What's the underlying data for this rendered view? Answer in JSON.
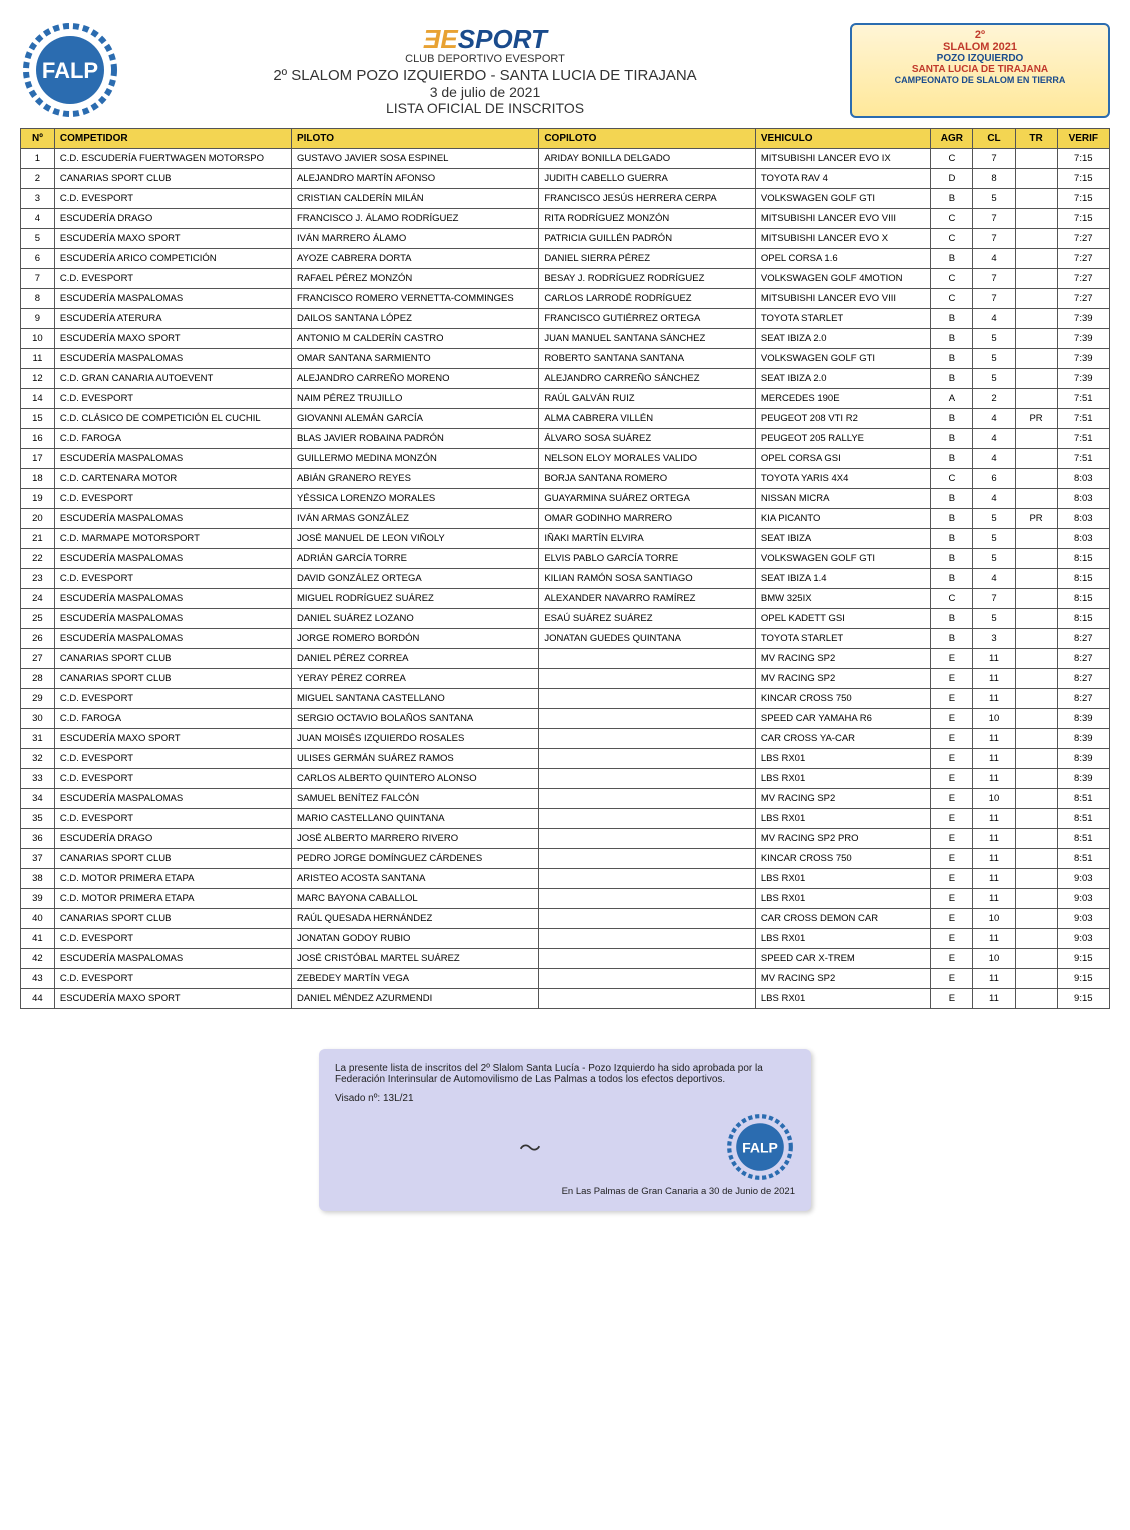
{
  "header": {
    "club_name": "CLUB DEPORTIVO EVESPORT",
    "event_title": "2º SLALOM POZO IZQUIERDO - SANTA LUCIA DE TIRAJANA",
    "event_date": "3 de julio de 2021",
    "list_title": "LISTA OFICIAL DE INSCRITOS",
    "badge": {
      "l1": "2º",
      "l2": "SLALOM 2021",
      "l3": "POZO IZQUIERDO",
      "l4": "SANTA LUCIA DE TIRAJANA",
      "l5": "CAMPEONATO DE SLALOM EN TIERRA"
    }
  },
  "columns": {
    "num": "Nº",
    "competidor": "COMPETIDOR",
    "piloto": "PILOTO",
    "copiloto": "COPILOTO",
    "vehiculo": "VEHICULO",
    "agr": "AGR",
    "cl": "CL",
    "tr": "TR",
    "verif": "VERIF"
  },
  "rows": [
    {
      "n": "1",
      "comp": "C.D. ESCUDERÍA FUERTWAGEN MOTORSPO",
      "pil": "GUSTAVO JAVIER SOSA ESPINEL",
      "cop": "ARIDAY BONILLA DELGADO",
      "veh": "MITSUBISHI LANCER EVO IX",
      "agr": "C",
      "cl": "7",
      "tr": "",
      "ver": "7:15"
    },
    {
      "n": "2",
      "comp": "CANARIAS SPORT CLUB",
      "pil": "ALEJANDRO MARTÍN AFONSO",
      "cop": "JUDITH CABELLO GUERRA",
      "veh": "TOYOTA RAV 4",
      "agr": "D",
      "cl": "8",
      "tr": "",
      "ver": "7:15"
    },
    {
      "n": "3",
      "comp": "C.D. EVESPORT",
      "pil": "CRISTIAN CALDERÍN MILÁN",
      "cop": "FRANCISCO JESÚS HERRERA CERPA",
      "veh": "VOLKSWAGEN GOLF GTI",
      "agr": "B",
      "cl": "5",
      "tr": "",
      "ver": "7:15"
    },
    {
      "n": "4",
      "comp": "ESCUDERÍA DRAGO",
      "pil": "FRANCISCO J. ÁLAMO RODRÍGUEZ",
      "cop": "RITA RODRÍGUEZ MONZÓN",
      "veh": "MITSUBISHI LANCER EVO VIII",
      "agr": "C",
      "cl": "7",
      "tr": "",
      "ver": "7:15"
    },
    {
      "n": "5",
      "comp": "ESCUDERÍA MAXO SPORT",
      "pil": "IVÁN MARRERO ÁLAMO",
      "cop": "PATRICIA GUILLÉN PADRÓN",
      "veh": "MITSUBISHI LANCER EVO X",
      "agr": "C",
      "cl": "7",
      "tr": "",
      "ver": "7:27"
    },
    {
      "n": "6",
      "comp": "ESCUDERÍA ARICO COMPETICIÓN",
      "pil": "AYOZE CABRERA DORTA",
      "cop": "DANIEL SIERRA PÉREZ",
      "veh": "OPEL CORSA 1.6",
      "agr": "B",
      "cl": "4",
      "tr": "",
      "ver": "7:27"
    },
    {
      "n": "7",
      "comp": "C.D. EVESPORT",
      "pil": "RAFAEL PÉREZ MONZÓN",
      "cop": "BESAY J. RODRÍGUEZ RODRÍGUEZ",
      "veh": "VOLKSWAGEN GOLF 4MOTION",
      "agr": "C",
      "cl": "7",
      "tr": "",
      "ver": "7:27"
    },
    {
      "n": "8",
      "comp": "ESCUDERÍA MASPALOMAS",
      "pil": "FRANCISCO ROMERO VERNETTA-COMMINGES",
      "cop": "CARLOS LARRODÉ RODRÍGUEZ",
      "veh": "MITSUBISHI LANCER EVO VIII",
      "agr": "C",
      "cl": "7",
      "tr": "",
      "ver": "7:27"
    },
    {
      "n": "9",
      "comp": "ESCUDERÍA ATERURA",
      "pil": "DAILOS SANTANA LÓPEZ",
      "cop": "FRANCISCO GUTIÉRREZ ORTEGA",
      "veh": "TOYOTA STARLET",
      "agr": "B",
      "cl": "4",
      "tr": "",
      "ver": "7:39"
    },
    {
      "n": "10",
      "comp": "ESCUDERÍA MAXO SPORT",
      "pil": "ANTONIO M CALDERÍN CASTRO",
      "cop": "JUAN MANUEL SANTANA SÁNCHEZ",
      "veh": "SEAT IBIZA 2.0",
      "agr": "B",
      "cl": "5",
      "tr": "",
      "ver": "7:39"
    },
    {
      "n": "11",
      "comp": "ESCUDERÍA MASPALOMAS",
      "pil": "OMAR SANTANA SARMIENTO",
      "cop": "ROBERTO SANTANA SANTANA",
      "veh": "VOLKSWAGEN GOLF GTI",
      "agr": "B",
      "cl": "5",
      "tr": "",
      "ver": "7:39"
    },
    {
      "n": "12",
      "comp": "C.D. GRAN CANARIA AUTOEVENT",
      "pil": "ALEJANDRO CARREÑO MORENO",
      "cop": "ALEJANDRO CARREÑO SÁNCHEZ",
      "veh": "SEAT IBIZA 2.0",
      "agr": "B",
      "cl": "5",
      "tr": "",
      "ver": "7:39"
    },
    {
      "n": "14",
      "comp": "C.D. EVESPORT",
      "pil": "NAIM PÉREZ TRUJILLO",
      "cop": "RAÚL GALVÁN RUIZ",
      "veh": "MERCEDES 190E",
      "agr": "A",
      "cl": "2",
      "tr": "",
      "ver": "7:51"
    },
    {
      "n": "15",
      "comp": "C.D. CLÁSICO DE COMPETICIÓN EL CUCHIL",
      "pil": "GIOVANNI ALEMÁN GARCÍA",
      "cop": "ALMA CABRERA VILLÉN",
      "veh": "PEUGEOT 208 VTI R2",
      "agr": "B",
      "cl": "4",
      "tr": "PR",
      "ver": "7:51"
    },
    {
      "n": "16",
      "comp": "C.D. FAROGA",
      "pil": "BLAS JAVIER ROBAINA PADRÓN",
      "cop": "ÁLVARO SOSA SUÁREZ",
      "veh": "PEUGEOT 205 RALLYE",
      "agr": "B",
      "cl": "4",
      "tr": "",
      "ver": "7:51"
    },
    {
      "n": "17",
      "comp": "ESCUDERÍA MASPALOMAS",
      "pil": "GUILLERMO MEDINA MONZÓN",
      "cop": "NELSON ELOY MORALES VALIDO",
      "veh": "OPEL CORSA GSI",
      "agr": "B",
      "cl": "4",
      "tr": "",
      "ver": "7:51"
    },
    {
      "n": "18",
      "comp": "C.D. CARTENARA MOTOR",
      "pil": "ABIÁN GRANERO REYES",
      "cop": "BORJA SANTANA ROMERO",
      "veh": "TOYOTA YARIS 4X4",
      "agr": "C",
      "cl": "6",
      "tr": "",
      "ver": "8:03"
    },
    {
      "n": "19",
      "comp": "C.D. EVESPORT",
      "pil": "YÉSSICA LORENZO MORALES",
      "cop": "GUAYARMINA SUÁREZ ORTEGA",
      "veh": "NISSAN MICRA",
      "agr": "B",
      "cl": "4",
      "tr": "",
      "ver": "8:03"
    },
    {
      "n": "20",
      "comp": "ESCUDERÍA MASPALOMAS",
      "pil": "IVÁN ARMAS GONZÁLEZ",
      "cop": "OMAR GODINHO MARRERO",
      "veh": "KIA PICANTO",
      "agr": "B",
      "cl": "5",
      "tr": "PR",
      "ver": "8:03"
    },
    {
      "n": "21",
      "comp": "C.D. MARMAPE MOTORSPORT",
      "pil": "JOSÉ MANUEL DE LEON VIÑOLY",
      "cop": "IÑAKI MARTÍN ELVIRA",
      "veh": "SEAT IBIZA",
      "agr": "B",
      "cl": "5",
      "tr": "",
      "ver": "8:03"
    },
    {
      "n": "22",
      "comp": "ESCUDERÍA MASPALOMAS",
      "pil": "ADRIÁN GARCÍA TORRE",
      "cop": "ELVIS PABLO GARCÍA TORRE",
      "veh": "VOLKSWAGEN GOLF GTI",
      "agr": "B",
      "cl": "5",
      "tr": "",
      "ver": "8:15"
    },
    {
      "n": "23",
      "comp": "C.D. EVESPORT",
      "pil": "DAVID GONZÁLEZ ORTEGA",
      "cop": "KILIAN RAMÓN SOSA SANTIAGO",
      "veh": "SEAT IBIZA 1.4",
      "agr": "B",
      "cl": "4",
      "tr": "",
      "ver": "8:15"
    },
    {
      "n": "24",
      "comp": "ESCUDERÍA MASPALOMAS",
      "pil": "MIGUEL RODRÍGUEZ SUÁREZ",
      "cop": "ALEXANDER NAVARRO RAMÍREZ",
      "veh": "BMW 325IX",
      "agr": "C",
      "cl": "7",
      "tr": "",
      "ver": "8:15"
    },
    {
      "n": "25",
      "comp": "ESCUDERÍA MASPALOMAS",
      "pil": "DANIEL SUÁREZ LOZANO",
      "cop": "ESAÚ SUÁREZ SUÁREZ",
      "veh": "OPEL KADETT GSI",
      "agr": "B",
      "cl": "5",
      "tr": "",
      "ver": "8:15"
    },
    {
      "n": "26",
      "comp": "ESCUDERÍA MASPALOMAS",
      "pil": "JORGE ROMERO BORDÓN",
      "cop": "JONATAN GUEDES QUINTANA",
      "veh": "TOYOTA STARLET",
      "agr": "B",
      "cl": "3",
      "tr": "",
      "ver": "8:27"
    },
    {
      "n": "27",
      "comp": "CANARIAS SPORT CLUB",
      "pil": "DANIEL PÉREZ CORREA",
      "cop": "",
      "veh": "MV RACING SP2",
      "agr": "E",
      "cl": "11",
      "tr": "",
      "ver": "8:27"
    },
    {
      "n": "28",
      "comp": "CANARIAS SPORT CLUB",
      "pil": "YERAY PÉREZ CORREA",
      "cop": "",
      "veh": "MV RACING SP2",
      "agr": "E",
      "cl": "11",
      "tr": "",
      "ver": "8:27"
    },
    {
      "n": "29",
      "comp": "C.D. EVESPORT",
      "pil": "MIGUEL SANTANA CASTELLANO",
      "cop": "",
      "veh": "KINCAR CROSS 750",
      "agr": "E",
      "cl": "11",
      "tr": "",
      "ver": "8:27"
    },
    {
      "n": "30",
      "comp": "C.D. FAROGA",
      "pil": "SERGIO OCTAVIO BOLAÑOS SANTANA",
      "cop": "",
      "veh": "SPEED CAR YAMAHA R6",
      "agr": "E",
      "cl": "10",
      "tr": "",
      "ver": "8:39"
    },
    {
      "n": "31",
      "comp": "ESCUDERÍA MAXO SPORT",
      "pil": "JUAN MOISÉS IZQUIERDO ROSALES",
      "cop": "",
      "veh": "CAR CROSS YA-CAR",
      "agr": "E",
      "cl": "11",
      "tr": "",
      "ver": "8:39"
    },
    {
      "n": "32",
      "comp": "C.D. EVESPORT",
      "pil": "ULISES GERMÁN SUÁREZ RAMOS",
      "cop": "",
      "veh": "LBS RX01",
      "agr": "E",
      "cl": "11",
      "tr": "",
      "ver": "8:39"
    },
    {
      "n": "33",
      "comp": "C.D. EVESPORT",
      "pil": "CARLOS ALBERTO QUINTERO ALONSO",
      "cop": "",
      "veh": "LBS RX01",
      "agr": "E",
      "cl": "11",
      "tr": "",
      "ver": "8:39"
    },
    {
      "n": "34",
      "comp": "ESCUDERÍA MASPALOMAS",
      "pil": "SAMUEL BENÍTEZ FALCÓN",
      "cop": "",
      "veh": "MV RACING SP2",
      "agr": "E",
      "cl": "10",
      "tr": "",
      "ver": "8:51"
    },
    {
      "n": "35",
      "comp": "C.D. EVESPORT",
      "pil": "MARIO CASTELLANO QUINTANA",
      "cop": "",
      "veh": "LBS RX01",
      "agr": "E",
      "cl": "11",
      "tr": "",
      "ver": "8:51"
    },
    {
      "n": "36",
      "comp": "ESCUDERÍA DRAGO",
      "pil": "JOSÉ ALBERTO MARRERO RIVERO",
      "cop": "",
      "veh": "MV RACING SP2 PRO",
      "agr": "E",
      "cl": "11",
      "tr": "",
      "ver": "8:51"
    },
    {
      "n": "37",
      "comp": "CANARIAS SPORT CLUB",
      "pil": "PEDRO JORGE DOMÍNGUEZ CÁRDENES",
      "cop": "",
      "veh": "KINCAR CROSS 750",
      "agr": "E",
      "cl": "11",
      "tr": "",
      "ver": "8:51"
    },
    {
      "n": "38",
      "comp": "C.D. MOTOR PRIMERA ETAPA",
      "pil": "ARISTEO ACOSTA SANTANA",
      "cop": "",
      "veh": "LBS RX01",
      "agr": "E",
      "cl": "11",
      "tr": "",
      "ver": "9:03"
    },
    {
      "n": "39",
      "comp": "C.D. MOTOR PRIMERA ETAPA",
      "pil": "MARC BAYONA CABALLOL",
      "cop": "",
      "veh": "LBS RX01",
      "agr": "E",
      "cl": "11",
      "tr": "",
      "ver": "9:03"
    },
    {
      "n": "40",
      "comp": "CANARIAS SPORT CLUB",
      "pil": "RAÚL QUESADA HERNÁNDEZ",
      "cop": "",
      "veh": "CAR CROSS DEMON CAR",
      "agr": "E",
      "cl": "10",
      "tr": "",
      "ver": "9:03"
    },
    {
      "n": "41",
      "comp": "C.D. EVESPORT",
      "pil": "JONATAN GODOY RUBIO",
      "cop": "",
      "veh": "LBS RX01",
      "agr": "E",
      "cl": "11",
      "tr": "",
      "ver": "9:03"
    },
    {
      "n": "42",
      "comp": "ESCUDERÍA MASPALOMAS",
      "pil": "JOSÉ CRISTÓBAL MARTEL SUÁREZ",
      "cop": "",
      "veh": "SPEED CAR X-TREM",
      "agr": "E",
      "cl": "10",
      "tr": "",
      "ver": "9:15"
    },
    {
      "n": "43",
      "comp": "C.D. EVESPORT",
      "pil": "ZEBEDEY MARTÍN VEGA",
      "cop": "",
      "veh": "MV RACING SP2",
      "agr": "E",
      "cl": "11",
      "tr": "",
      "ver": "9:15"
    },
    {
      "n": "44",
      "comp": "ESCUDERÍA MAXO SPORT",
      "pil": "DANIEL MÉNDEZ AZURMENDI",
      "cop": "",
      "veh": "LBS RX01",
      "agr": "E",
      "cl": "11",
      "tr": "",
      "ver": "9:15"
    }
  ],
  "footer": {
    "text": "La presente lista de inscritos del 2º Slalom Santa Lucía - Pozo Izquierdo ha sido aprobada por la Federación Interinsular de Automovilismo de Las Palmas a todos los efectos deportivos.",
    "visado": "Visado nº: 13L/21",
    "loc": "En Las Palmas de Gran Canaria a 30 de Junio de 2021"
  },
  "colors": {
    "header_bg": "#f3d552",
    "border": "#555555",
    "falp_blue": "#2b6cb0",
    "footer_bg": "#d4d4f0"
  }
}
